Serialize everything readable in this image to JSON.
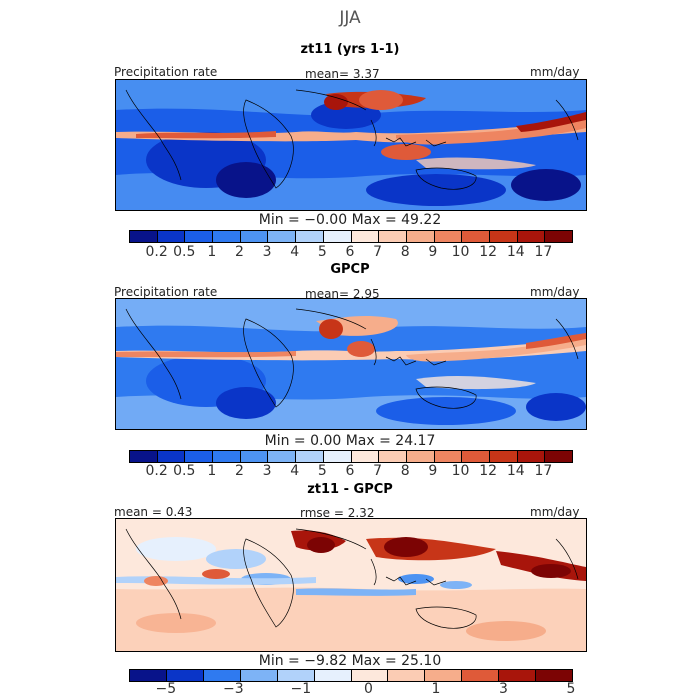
{
  "season": "JJA",
  "panels": [
    {
      "title": "zt11 (yrs 1-1)",
      "left_label": "Precipitation rate",
      "mid_label": "mean=    3.37",
      "right_label": "mm/day",
      "minmax": "Min =   −0.00  Max =   49.22",
      "colorbar": {
        "colors": [
          "#08138a",
          "#0a35c8",
          "#1b5ee8",
          "#2f7af0",
          "#4d93f2",
          "#7db3f6",
          "#b1d2fa",
          "#e6f0fd",
          "#fde8dc",
          "#fbccb4",
          "#f6ad8b",
          "#ee8561",
          "#df5a39",
          "#c73518",
          "#a8150b",
          "#7c0404"
        ],
        "tick_labels": [
          "0.2",
          "0.5",
          "1",
          "2",
          "3",
          "4",
          "5",
          "6",
          "7",
          "8",
          "9",
          "10",
          "12",
          "14",
          "17"
        ]
      },
      "region": "Global tropics, 180°W–180°E, 30°S–30°N (precipitation rate, mm/day)"
    },
    {
      "title": "GPCP",
      "left_label": "Precipitation rate",
      "mid_label": "mean=    2.95",
      "right_label": "mm/day",
      "minmax": "Min =    0.00  Max =   24.17",
      "colorbar": {
        "colors": [
          "#08138a",
          "#0a35c8",
          "#1b5ee8",
          "#2f7af0",
          "#4d93f2",
          "#7db3f6",
          "#b1d2fa",
          "#e6f0fd",
          "#fde8dc",
          "#fbccb4",
          "#f6ad8b",
          "#ee8561",
          "#df5a39",
          "#c73518",
          "#a8150b",
          "#7c0404"
        ],
        "tick_labels": [
          "0.2",
          "0.5",
          "1",
          "2",
          "3",
          "4",
          "5",
          "6",
          "7",
          "8",
          "9",
          "10",
          "12",
          "14",
          "17"
        ]
      },
      "region": "Global tropics, 180°W–180°E, 30°S–30°N (precipitation rate, mm/day)"
    },
    {
      "title": "zt11 - GPCP",
      "left_label": "mean =    0.43",
      "mid_label": "rmse =     2.32",
      "right_label": "mm/day",
      "minmax": "Min =   −9.82  Max =   25.10",
      "colorbar": {
        "colors": [
          "#08138a",
          "#0a35c8",
          "#2f7af0",
          "#7db3f6",
          "#b1d2fa",
          "#e6f0fd",
          "#fde8dc",
          "#fbccb4",
          "#f6ad8b",
          "#df5a39",
          "#a8150b",
          "#7c0404"
        ],
        "tick_labels": [
          "−5",
          "−3",
          "−1",
          "0",
          "1",
          "3",
          "5"
        ]
      },
      "region": "Global tropics, difference field (mm/day)"
    }
  ]
}
